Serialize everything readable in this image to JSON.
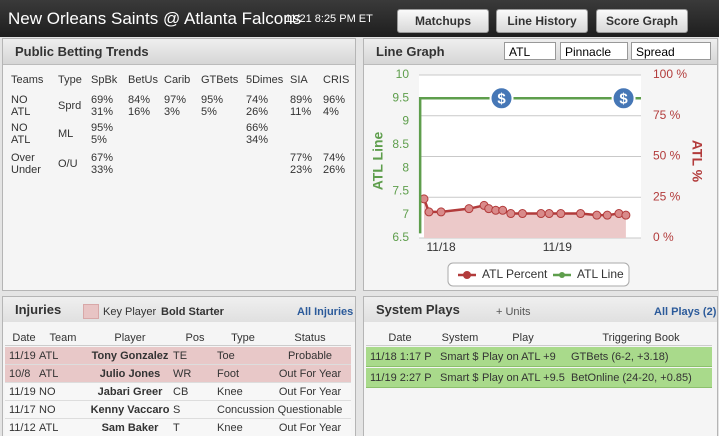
{
  "header": {
    "title": "New Orleans Saints @ Atlanta Falcons",
    "datetime": "11/21 8:25 PM ET",
    "buttons": [
      "Matchups",
      "Line History",
      "Score Graph"
    ]
  },
  "betting_trends": {
    "title": "Public Betting Trends",
    "columns": [
      "Teams",
      "Type",
      "SpBk",
      "BetUs",
      "Carib",
      "GTBets",
      "5Dimes",
      "SIA",
      "CRIS"
    ],
    "rows": [
      [
        [
          "NO",
          "ATL"
        ],
        "Sprd",
        [
          "69%",
          "31%"
        ],
        [
          "84%",
          "16%"
        ],
        [
          "97%",
          "3%"
        ],
        [
          "95%",
          "5%"
        ],
        [
          "74%",
          "26%"
        ],
        [
          "89%",
          "11%"
        ],
        [
          "96%",
          "4%"
        ]
      ],
      [
        [
          "NO",
          "ATL"
        ],
        "ML",
        [
          "95%",
          "5%"
        ],
        null,
        null,
        null,
        [
          "66%",
          "34%"
        ],
        null,
        null
      ],
      [
        [
          "Over",
          "Under"
        ],
        "O/U",
        [
          "67%",
          "33%"
        ],
        null,
        null,
        null,
        null,
        [
          "77%",
          "23%"
        ],
        [
          "74%",
          "26%"
        ]
      ]
    ]
  },
  "line_graph": {
    "title": "Line Graph",
    "selects": [
      "ATL",
      "Pinnacle",
      "Spread"
    ]
  },
  "chart_data": {
    "type": "line",
    "y_label": "ATL Line",
    "y2_label": "ATL %",
    "xlim": [
      17.81,
      19.72
    ],
    "xticks": [
      {
        "value": 18,
        "label": "11/18"
      },
      {
        "value": 19,
        "label": "11/19"
      }
    ],
    "ylim": [
      6.5,
      10
    ],
    "yticks": [
      6.5,
      7,
      7.5,
      8,
      8.5,
      9,
      9.5,
      10
    ],
    "y2lim": [
      0,
      100
    ],
    "y2ticks": [
      {
        "value": 0,
        "label": "0 %"
      },
      {
        "value": 25,
        "label": "25 %"
      },
      {
        "value": 50,
        "label": "50 %"
      },
      {
        "value": 75,
        "label": "75 %"
      },
      {
        "value": 100,
        "label": "100 %"
      }
    ],
    "grid": true,
    "legend": "bottom",
    "series": [
      {
        "name": "ATL Percent",
        "color": "#b23b3b",
        "fill": "#ecc9c9",
        "axis": "y2",
        "marker": "circle",
        "x": [
          17.853,
          17.896,
          18.0,
          18.24,
          18.37,
          18.41,
          18.47,
          18.53,
          18.6,
          18.7,
          18.86,
          18.93,
          19.03,
          19.2,
          19.34,
          19.43,
          19.53,
          19.59
        ],
        "values": [
          24,
          16,
          16,
          18,
          20,
          18,
          17,
          17,
          15,
          15,
          15,
          15,
          15,
          15,
          14,
          14,
          15,
          14
        ]
      },
      {
        "name": "ATL Line",
        "color": "#5e9e4c",
        "x": [
          17.82,
          17.82,
          19.72
        ],
        "values": [
          6.6,
          9.5,
          9.5
        ]
      }
    ],
    "markers": [
      {
        "x": 18.52,
        "y": 9.5,
        "label": "$"
      },
      {
        "x": 19.57,
        "y": 9.5,
        "label": "$"
      }
    ]
  },
  "injuries": {
    "title": "Injuries",
    "legend": [
      "Key Player",
      "Bold Starter"
    ],
    "link": "All Injuries",
    "columns": [
      "Date",
      "Team",
      "Player",
      "Pos",
      "Type",
      "Status"
    ],
    "rows": [
      {
        "key_player": true,
        "cells": [
          "11/19",
          "ATL",
          "Tony Gonzalez",
          "TE",
          "Toe",
          "Probable"
        ]
      },
      {
        "key_player": true,
        "cells": [
          "10/8",
          "ATL",
          "Julio Jones",
          "WR",
          "Foot",
          "Out For Year"
        ]
      },
      {
        "key_player": false,
        "cells": [
          "11/19",
          "NO",
          "Jabari Greer",
          "CB",
          "Knee",
          "Out For Year"
        ]
      },
      {
        "key_player": false,
        "cells": [
          "11/17",
          "NO",
          "Kenny Vaccaro",
          "S",
          "Concussion",
          "Questionable"
        ]
      },
      {
        "key_player": false,
        "cells": [
          "11/12",
          "ATL",
          "Sam Baker",
          "T",
          "Knee",
          "Out For Year"
        ]
      }
    ]
  },
  "system_plays": {
    "title": "System Plays",
    "units": "+ Units",
    "link": "All Plays (2)",
    "columns": [
      "Date",
      "System",
      "Play",
      "Triggering Book"
    ],
    "rows": [
      [
        "11/18 1:17 P",
        "Smart $",
        "Play on ATL +9",
        "GTBets (6-2, +3.18)"
      ],
      [
        "11/19 2:27 P",
        "Smart $",
        "Play on ATL +9.5",
        "BetOnline (24-20, +0.85)"
      ]
    ]
  }
}
